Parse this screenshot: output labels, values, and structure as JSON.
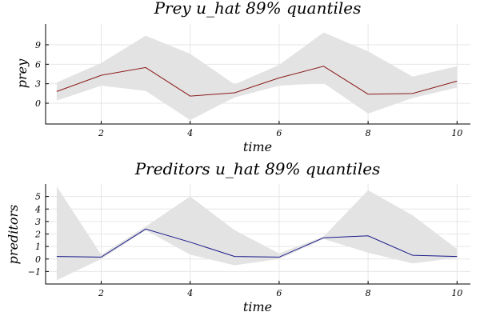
{
  "chart_data": [
    {
      "type": "line",
      "title": "Prey u_hat 89% quantiles",
      "xlabel": "time",
      "ylabel": "prey",
      "xlim": [
        0.75,
        10.3
      ],
      "ylim": [
        -3.2,
        12.2
      ],
      "xticks": [
        2,
        4,
        6,
        8,
        10
      ],
      "yticks": [
        0,
        3,
        6,
        9
      ],
      "grid": true,
      "x": [
        1,
        2,
        3,
        4,
        5,
        6,
        7,
        8,
        9,
        10
      ],
      "series": [
        {
          "color": "#8b1a1a",
          "values": [
            1.8,
            4.3,
            5.5,
            1.1,
            1.6,
            3.9,
            5.7,
            1.4,
            1.5,
            3.4
          ],
          "lower": [
            0.4,
            2.7,
            1.9,
            -2.6,
            0.9,
            2.7,
            3.1,
            -1.6,
            0.8,
            2.4
          ],
          "upper": [
            3.2,
            6.2,
            10.4,
            7.6,
            2.9,
            5.9,
            10.9,
            8.0,
            4.1,
            5.7
          ]
        }
      ]
    },
    {
      "type": "line",
      "title": "Preditors u_hat 89% quantiles",
      "xlabel": "time",
      "ylabel": "preditors",
      "xlim": [
        0.75,
        10.3
      ],
      "ylim": [
        -2.0,
        6.0
      ],
      "xticks": [
        2,
        4,
        6,
        8,
        10
      ],
      "yticks": [
        -1,
        0,
        1,
        2,
        3,
        4,
        5
      ],
      "grid": true,
      "x": [
        1,
        2,
        3,
        4,
        5,
        6,
        7,
        8,
        9,
        10
      ],
      "series": [
        {
          "color": "#1a1a8b",
          "values": [
            0.2,
            0.15,
            2.4,
            1.35,
            0.2,
            0.15,
            1.7,
            1.85,
            0.3,
            0.2
          ],
          "lower": [
            -1.7,
            0.0,
            2.3,
            0.35,
            -0.5,
            0.0,
            1.6,
            0.5,
            -0.35,
            0.1
          ],
          "upper": [
            5.8,
            0.35,
            2.6,
            5.0,
            2.3,
            0.45,
            1.8,
            5.5,
            3.5,
            0.8
          ]
        }
      ]
    }
  ]
}
